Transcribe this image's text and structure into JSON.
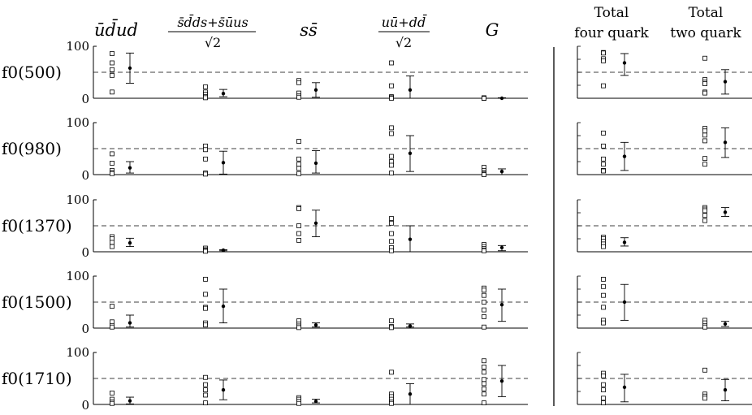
{
  "column_headers": {
    "uudud": "ūd̄ud",
    "ssdds_num": "s̄d̄ds+s̄ūus",
    "sqrt2_a": "√2",
    "ss": "ss̄",
    "uudd_num": "uū+dd̄",
    "sqrt2_b": "√2",
    "glue": "G",
    "total4_l1": "Total",
    "total4_l2": "four quark",
    "total2_l1": "Total",
    "total2_l2": "two quark"
  },
  "row_labels": [
    "f0(500)",
    "f0(980)",
    "f0(1370)",
    "f0(1500)",
    "f0(1710)"
  ],
  "tick_labels": {
    "top": "100",
    "bottom": "0"
  },
  "chart_data": {
    "type": "scatter",
    "ylim": [
      0,
      100
    ],
    "reference_line": 50,
    "columns": [
      "ūd̄ud",
      "(s̄d̄ds+s̄ūus)/√2",
      "ss̄",
      "(uū+dd̄)/√2",
      "G",
      "Total four quark",
      "Total two quark"
    ],
    "rows": [
      {
        "state": "f0(500)",
        "cells": [
          {
            "points": [
              86,
              68,
              55,
              44,
              12
            ],
            "mean": 58,
            "err": [
              29,
              87
            ]
          },
          {
            "points": [
              22,
              12,
              8,
              3,
              1
            ],
            "mean": 9,
            "err": [
              3,
              17
            ]
          },
          {
            "points": [
              34,
              30,
              10,
              5,
              2
            ],
            "mean": 16,
            "err": [
              2,
              30
            ]
          },
          {
            "points": [
              68,
              24,
              3,
              1,
              0
            ],
            "mean": 16,
            "err": [
              0,
              43
            ]
          },
          {
            "points": [
              1,
              0,
              0,
              0
            ],
            "mean": 0,
            "err": [
              0,
              1
            ]
          },
          {
            "points": [
              88,
              87,
              76,
              72,
              24
            ],
            "mean": 68,
            "err": [
              44,
              86
            ]
          },
          {
            "points": [
              77,
              36,
              31,
              28,
              12,
              10
            ],
            "mean": 32,
            "err": [
              8,
              55
            ]
          }
        ]
      },
      {
        "state": "f0(980)",
        "cells": [
          {
            "points": [
              40,
              22,
              8,
              4,
              2
            ],
            "mean": 13,
            "err": [
              3,
              25
            ]
          },
          {
            "points": [
              55,
              48,
              30,
              3,
              1
            ],
            "mean": 23,
            "err": [
              1,
              45
            ]
          },
          {
            "points": [
              64,
              30,
              20,
              12,
              2
            ],
            "mean": 22,
            "err": [
              3,
              46
            ]
          },
          {
            "points": [
              90,
              79,
              35,
              25,
              18,
              3
            ],
            "mean": 41,
            "err": [
              6,
              75
            ]
          },
          {
            "points": [
              14,
              8,
              4,
              2,
              0
            ],
            "mean": 6,
            "err": [
              0,
              11
            ]
          },
          {
            "points": [
              80,
              55,
              30,
              20,
              8,
              7
            ],
            "mean": 35,
            "err": [
              8,
              62
            ]
          },
          {
            "points": [
              89,
              84,
              76,
              65,
              31,
              20
            ],
            "mean": 62,
            "err": [
              33,
              90
            ]
          }
        ]
      },
      {
        "state": "f0(1370)",
        "cells": [
          {
            "points": [
              29,
              25,
              18,
              10
            ],
            "mean": 17,
            "err": [
              10,
              26
            ]
          },
          {
            "points": [
              7,
              4,
              2,
              1
            ],
            "mean": 3,
            "err": [
              2,
              4
            ]
          },
          {
            "points": [
              85,
              83,
              50,
              35,
              22
            ],
            "mean": 55,
            "err": [
              29,
              80
            ]
          },
          {
            "points": [
              64,
              55,
              35,
              20,
              8,
              2
            ],
            "mean": 24,
            "err": [
              0,
              50
            ]
          },
          {
            "points": [
              14,
              10,
              6,
              3,
              2
            ],
            "mean": 8,
            "err": [
              2,
              12
            ]
          },
          {
            "points": [
              28,
              25,
              20,
              15,
              10
            ],
            "mean": 18,
            "err": [
              11,
              27
            ]
          },
          {
            "points": [
              85,
              82,
              79,
              70,
              60
            ],
            "mean": 76,
            "err": [
              68,
              85
            ]
          }
        ]
      },
      {
        "state": "f0(1500)",
        "cells": [
          {
            "points": [
              42,
              12,
              5,
              2
            ],
            "mean": 10,
            "err": [
              2,
              25
            ]
          },
          {
            "points": [
              94,
              65,
              40,
              38,
              10,
              6
            ],
            "mean": 42,
            "err": [
              10,
              75
            ]
          },
          {
            "points": [
              14,
              8,
              4,
              1
            ],
            "mean": 6,
            "err": [
              2,
              10
            ]
          },
          {
            "points": [
              14,
              3,
              1
            ],
            "mean": 4,
            "err": [
              2,
              8
            ]
          },
          {
            "points": [
              77,
              73,
              63,
              50,
              35,
              22,
              2
            ],
            "mean": 45,
            "err": [
              13,
              75
            ]
          },
          {
            "points": [
              94,
              80,
              63,
              40,
              15,
              10
            ],
            "mean": 50,
            "err": [
              15,
              84
            ]
          },
          {
            "points": [
              15,
              10,
              5,
              2
            ],
            "mean": 8,
            "err": [
              3,
              13
            ]
          }
        ]
      },
      {
        "state": "f0(1710)",
        "cells": [
          {
            "points": [
              22,
              10,
              5,
              2
            ],
            "mean": 7,
            "err": [
              1,
              14
            ]
          },
          {
            "points": [
              52,
              38,
              28,
              18,
              3
            ],
            "mean": 28,
            "err": [
              9,
              47
            ]
          },
          {
            "points": [
              13,
              10,
              6,
              2
            ],
            "mean": 6,
            "err": [
              3,
              10
            ]
          },
          {
            "points": [
              62,
              20,
              15,
              10,
              5,
              2
            ],
            "mean": 20,
            "err": [
              0,
              40
            ]
          },
          {
            "points": [
              84,
              72,
              62,
              48,
              40,
              30,
              20,
              3
            ],
            "mean": 45,
            "err": [
              15,
              75
            ]
          },
          {
            "points": [
              60,
              55,
              38,
              28,
              12,
              3
            ],
            "mean": 33,
            "err": [
              5,
              58
            ]
          },
          {
            "points": [
              66,
              20,
              16,
              12
            ],
            "mean": 28,
            "err": [
              7,
              48
            ]
          }
        ]
      }
    ]
  }
}
